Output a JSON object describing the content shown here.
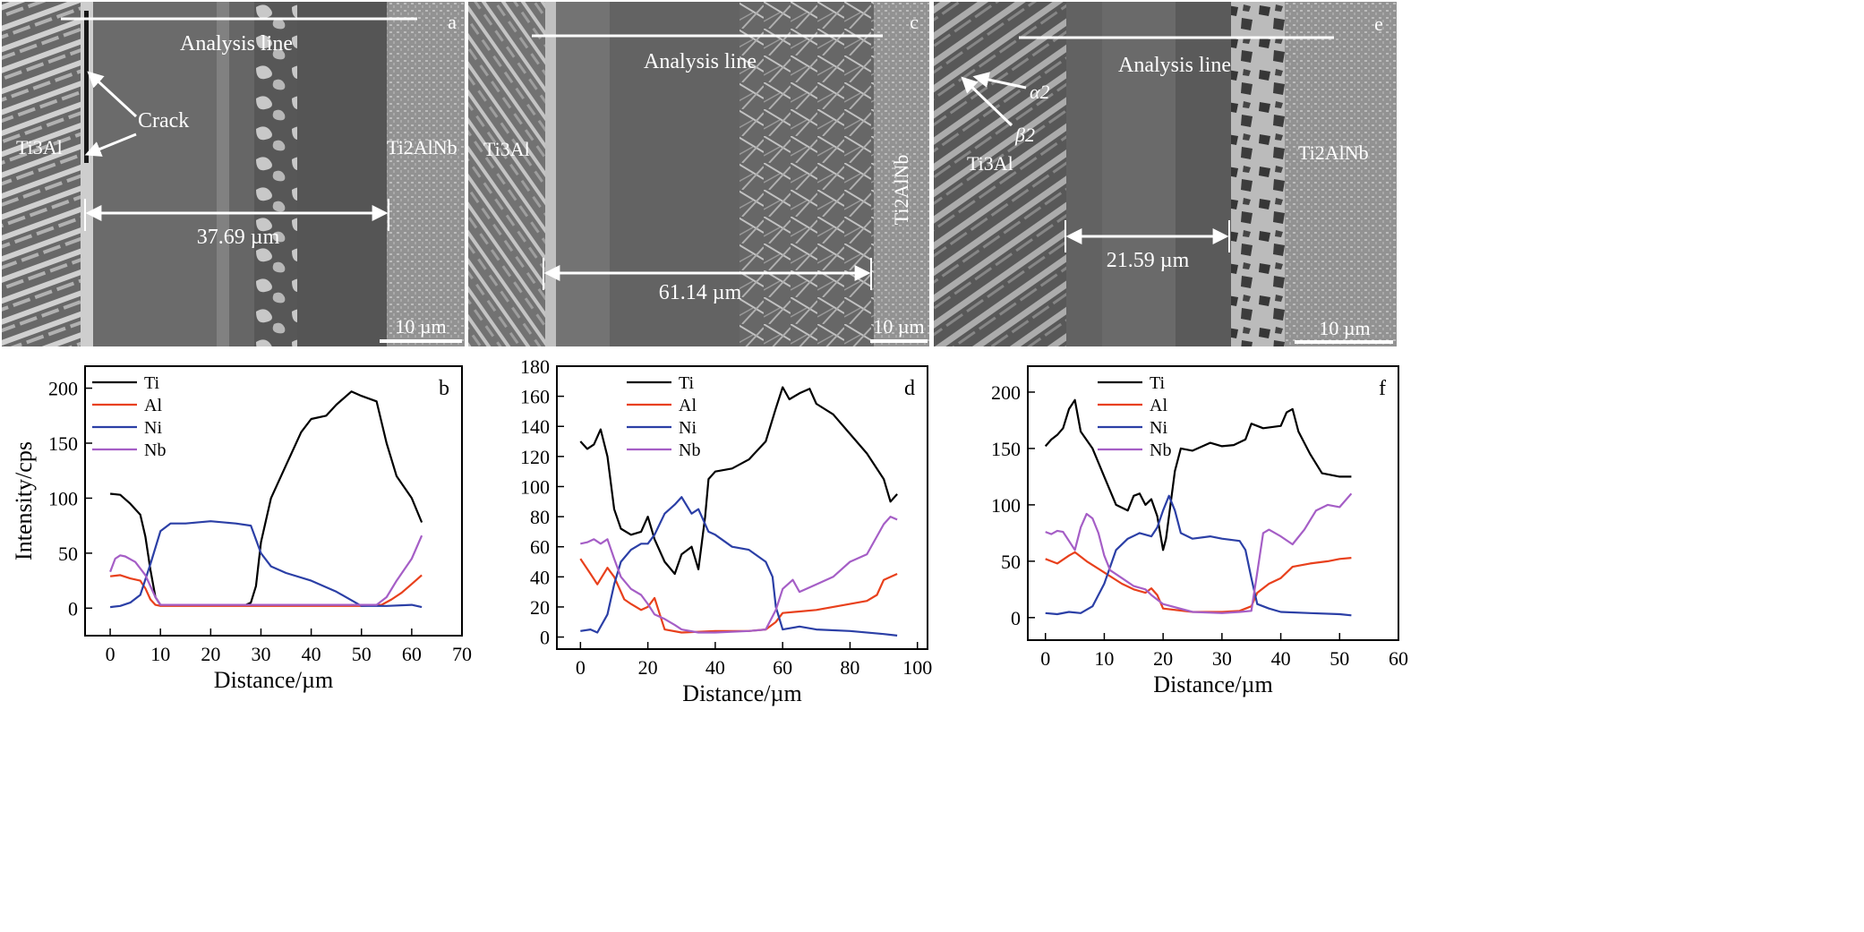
{
  "panels": {
    "a": {
      "letter": "a",
      "analysis_label": "Analysis line",
      "crack_label": "Crack",
      "left_phase_label": "Ti3Al",
      "right_phase_label": "Ti2AlNb",
      "width_label": "37.69 µm",
      "scale_label": "10 µm"
    },
    "c": {
      "letter": "c",
      "analysis_label": "Analysis line",
      "left_phase_label": "Ti3Al",
      "right_phase_label": "Ti2AlNb",
      "width_label": "61.14 µm",
      "scale_label": "10 µm"
    },
    "e": {
      "letter": "e",
      "analysis_label": "Analysis line",
      "alpha_label": "α2",
      "beta_label": "β2",
      "left_phase_label": "Ti3Al",
      "right_phase_label": "Ti2AlNb",
      "width_label": "21.59 µm",
      "scale_label": "10 µm"
    }
  },
  "colors": {
    "Ti": "#000000",
    "Al": "#e8401c",
    "Ni": "#2b3fa6",
    "Nb": "#a55ec6"
  },
  "chart_data": [
    {
      "type": "line",
      "letter": "b",
      "xlabel": "Distance/µm",
      "ylabel": "Intensity/cps",
      "xlim": [
        -5,
        70
      ],
      "ylim": [
        -25,
        220
      ],
      "xticks": [
        0,
        10,
        20,
        30,
        40,
        50,
        60,
        70
      ],
      "yticks": [
        0,
        50,
        100,
        150,
        200
      ],
      "legend_position": "top-left",
      "series": [
        {
          "name": "Ti",
          "color": "#000000",
          "x": [
            0,
            2,
            4,
            6,
            7,
            8,
            9,
            10,
            12,
            15,
            20,
            25,
            27,
            28,
            29,
            30,
            32,
            35,
            38,
            40,
            43,
            45,
            48,
            50,
            53,
            55,
            57,
            60,
            62
          ],
          "y": [
            104,
            103,
            95,
            85,
            65,
            35,
            10,
            3,
            3,
            3,
            3,
            3,
            3,
            5,
            20,
            60,
            100,
            130,
            160,
            172,
            175,
            185,
            197,
            193,
            188,
            150,
            120,
            100,
            78
          ]
        },
        {
          "name": "Al",
          "color": "#e8401c",
          "x": [
            0,
            2,
            4,
            6,
            7,
            8,
            9,
            10,
            15,
            20,
            25,
            30,
            40,
            50,
            54,
            56,
            58,
            60,
            62
          ],
          "y": [
            29,
            30,
            27,
            25,
            18,
            8,
            3,
            2,
            2,
            2,
            2,
            2,
            2,
            2,
            3,
            8,
            14,
            22,
            30
          ]
        },
        {
          "name": "Ni",
          "color": "#2b3fa6",
          "x": [
            0,
            2,
            4,
            6,
            8,
            10,
            12,
            15,
            20,
            25,
            28,
            30,
            32,
            35,
            40,
            45,
            50,
            55,
            60,
            62
          ],
          "y": [
            1,
            2,
            5,
            12,
            40,
            70,
            77,
            77,
            79,
            77,
            75,
            50,
            38,
            32,
            25,
            15,
            2,
            2,
            3,
            1
          ]
        },
        {
          "name": "Nb",
          "color": "#a55ec6",
          "x": [
            0,
            1,
            2,
            3,
            5,
            7,
            9,
            10,
            15,
            20,
            30,
            40,
            50,
            53,
            55,
            57,
            60,
            62
          ],
          "y": [
            33,
            45,
            48,
            47,
            42,
            30,
            10,
            3,
            3,
            3,
            3,
            3,
            3,
            3,
            10,
            25,
            45,
            66
          ]
        }
      ]
    },
    {
      "type": "line",
      "letter": "d",
      "xlabel": "Distance/µm",
      "ylabel": "",
      "xlim": [
        -7,
        103
      ],
      "ylim": [
        -8,
        180
      ],
      "xticks": [
        0,
        20,
        40,
        60,
        80,
        100
      ],
      "yticks": [
        0,
        20,
        40,
        60,
        80,
        100,
        120,
        140,
        160,
        180
      ],
      "legend_position": "top-left",
      "series": [
        {
          "name": "Ti",
          "color": "#000000",
          "x": [
            0,
            2,
            4,
            6,
            8,
            10,
            12,
            15,
            18,
            20,
            22,
            25,
            28,
            30,
            33,
            35,
            37,
            38,
            40,
            45,
            50,
            55,
            58,
            60,
            62,
            65,
            68,
            70,
            75,
            80,
            85,
            90,
            92,
            94
          ],
          "y": [
            130,
            125,
            128,
            138,
            120,
            85,
            72,
            68,
            70,
            80,
            65,
            50,
            42,
            55,
            60,
            45,
            80,
            105,
            110,
            112,
            118,
            130,
            152,
            166,
            158,
            162,
            165,
            155,
            148,
            135,
            122,
            105,
            90,
            95
          ]
        },
        {
          "name": "Al",
          "color": "#e8401c",
          "x": [
            0,
            3,
            5,
            8,
            10,
            13,
            15,
            18,
            20,
            22,
            25,
            30,
            40,
            50,
            55,
            58,
            60,
            70,
            80,
            85,
            88,
            90,
            94
          ],
          "y": [
            52,
            42,
            35,
            46,
            40,
            25,
            22,
            18,
            20,
            26,
            5,
            3,
            4,
            4,
            5,
            10,
            16,
            18,
            22,
            24,
            28,
            38,
            42
          ]
        },
        {
          "name": "Ni",
          "color": "#2b3fa6",
          "x": [
            0,
            3,
            5,
            8,
            10,
            12,
            15,
            18,
            20,
            22,
            25,
            28,
            30,
            33,
            35,
            38,
            40,
            45,
            50,
            55,
            57,
            58,
            60,
            65,
            70,
            80,
            90,
            94
          ],
          "y": [
            4,
            5,
            3,
            15,
            35,
            50,
            58,
            62,
            62,
            68,
            82,
            88,
            93,
            82,
            85,
            70,
            68,
            60,
            58,
            50,
            40,
            20,
            5,
            7,
            5,
            4,
            2,
            1
          ]
        },
        {
          "name": "Nb",
          "color": "#a55ec6",
          "x": [
            0,
            2,
            4,
            6,
            8,
            10,
            12,
            15,
            18,
            20,
            22,
            25,
            28,
            30,
            35,
            40,
            50,
            55,
            58,
            60,
            63,
            65,
            70,
            75,
            80,
            85,
            90,
            92,
            94
          ],
          "y": [
            62,
            63,
            65,
            62,
            65,
            52,
            40,
            32,
            28,
            22,
            15,
            12,
            8,
            5,
            3,
            3,
            4,
            5,
            18,
            32,
            38,
            30,
            35,
            40,
            50,
            55,
            75,
            80,
            78
          ]
        }
      ]
    },
    {
      "type": "line",
      "letter": "f",
      "xlabel": "Distance/µm",
      "ylabel": "",
      "xlim": [
        -3,
        60
      ],
      "ylim": [
        -20,
        223
      ],
      "xticks": [
        0,
        10,
        20,
        30,
        40,
        50,
        60
      ],
      "yticks": [
        0,
        50,
        100,
        150,
        200
      ],
      "legend_position": "top-left",
      "series": [
        {
          "name": "Ti",
          "color": "#000000",
          "x": [
            0,
            1,
            2,
            3,
            4,
            5,
            6,
            8,
            10,
            12,
            14,
            15,
            16,
            17,
            18,
            19,
            20,
            20.5,
            21,
            22,
            23,
            25,
            28,
            30,
            32,
            34,
            35,
            37,
            40,
            41,
            42,
            43,
            45,
            47,
            50,
            52
          ],
          "y": [
            152,
            158,
            162,
            168,
            185,
            193,
            165,
            150,
            125,
            100,
            95,
            108,
            110,
            100,
            105,
            90,
            60,
            70,
            90,
            130,
            150,
            148,
            155,
            152,
            153,
            158,
            172,
            168,
            170,
            182,
            185,
            165,
            145,
            128,
            125,
            125
          ]
        },
        {
          "name": "Al",
          "color": "#e8401c",
          "x": [
            0,
            2,
            4,
            5,
            7,
            10,
            13,
            15,
            17,
            18,
            19,
            20,
            25,
            30,
            33,
            35,
            36,
            38,
            40,
            42,
            45,
            48,
            50,
            52
          ],
          "y": [
            52,
            48,
            55,
            58,
            50,
            40,
            30,
            25,
            22,
            26,
            20,
            8,
            5,
            5,
            6,
            10,
            22,
            30,
            35,
            45,
            48,
            50,
            52,
            53
          ]
        },
        {
          "name": "Ni",
          "color": "#2b3fa6",
          "x": [
            0,
            2,
            4,
            6,
            8,
            10,
            12,
            14,
            16,
            18,
            19,
            20,
            21,
            22,
            23,
            25,
            28,
            30,
            33,
            34,
            35,
            36,
            38,
            40,
            45,
            50,
            52
          ],
          "y": [
            4,
            3,
            5,
            4,
            10,
            30,
            60,
            70,
            75,
            72,
            80,
            95,
            108,
            95,
            75,
            70,
            72,
            70,
            68,
            60,
            35,
            12,
            8,
            5,
            4,
            3,
            2
          ]
        },
        {
          "name": "Nb",
          "color": "#a55ec6",
          "x": [
            0,
            1,
            2,
            3,
            4,
            5,
            6,
            7,
            8,
            9,
            10,
            11,
            13,
            15,
            17,
            18,
            20,
            25,
            30,
            33,
            35,
            36,
            37,
            38,
            40,
            42,
            44,
            46,
            48,
            50,
            52
          ],
          "y": [
            76,
            74,
            77,
            76,
            68,
            60,
            80,
            92,
            88,
            75,
            55,
            42,
            35,
            28,
            25,
            20,
            12,
            5,
            4,
            5,
            6,
            40,
            75,
            78,
            72,
            65,
            78,
            95,
            100,
            98,
            110
          ]
        }
      ]
    }
  ]
}
